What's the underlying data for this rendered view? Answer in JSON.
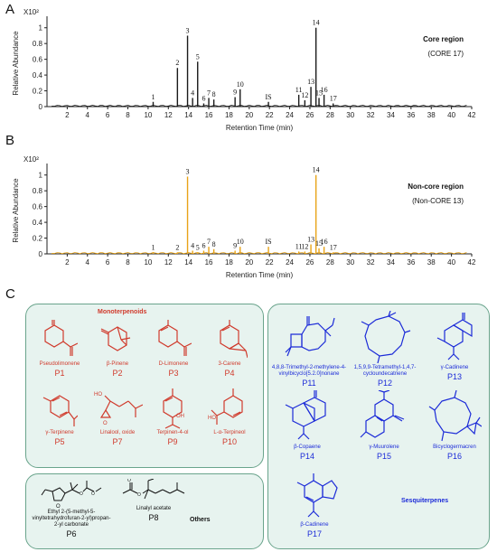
{
  "panels": {
    "a": "A",
    "b": "B",
    "c": "C"
  },
  "chart_data": [
    {
      "type": "line",
      "title": "Core region",
      "subtitle": "(CORE 17)",
      "xlabel": "Retention Time (min)",
      "ylabel": "Relative Abundance",
      "y_multiplier": "X10²",
      "xlim": [
        0,
        42
      ],
      "xticks": [
        2,
        4,
        6,
        8,
        10,
        12,
        14,
        16,
        18,
        20,
        22,
        24,
        26,
        28,
        30,
        32,
        34,
        36,
        38,
        40,
        42
      ],
      "ylim": [
        0,
        1.1
      ],
      "yticks": [
        0,
        0.2,
        0.4,
        0.6,
        0.8,
        1
      ],
      "color": "#1a1a1a",
      "peaks": [
        {
          "label": "1",
          "x": 10.5,
          "y": 0.06
        },
        {
          "label": "2",
          "x": 12.9,
          "y": 0.49
        },
        {
          "label": "3",
          "x": 13.9,
          "y": 0.9
        },
        {
          "label": "4",
          "x": 14.4,
          "y": 0.11
        },
        {
          "label": "5",
          "x": 14.9,
          "y": 0.57
        },
        {
          "label": "6",
          "x": 15.5,
          "y": 0.04
        },
        {
          "label": "7",
          "x": 16.0,
          "y": 0.11
        },
        {
          "label": "8",
          "x": 16.5,
          "y": 0.09
        },
        {
          "label": "9",
          "x": 18.6,
          "y": 0.12
        },
        {
          "label": "10",
          "x": 19.1,
          "y": 0.22
        },
        {
          "label": "IS",
          "x": 21.9,
          "y": 0.06
        },
        {
          "label": "11",
          "x": 24.9,
          "y": 0.15
        },
        {
          "label": "12",
          "x": 25.5,
          "y": 0.08
        },
        {
          "label": "13",
          "x": 26.1,
          "y": 0.25
        },
        {
          "label": "14",
          "x": 26.6,
          "y": 1.0
        },
        {
          "label": "15",
          "x": 26.9,
          "y": 0.11
        },
        {
          "label": "16",
          "x": 27.4,
          "y": 0.15
        },
        {
          "label": "17",
          "x": 28.3,
          "y": 0.04
        }
      ]
    },
    {
      "type": "line",
      "title": "Non-core region",
      "subtitle": "(Non-CORE 13)",
      "xlabel": "Retention Time (min)",
      "ylabel": "Relative Abundance",
      "y_multiplier": "X10²",
      "xlim": [
        0,
        42
      ],
      "xticks": [
        2,
        4,
        6,
        8,
        10,
        12,
        14,
        16,
        18,
        20,
        22,
        24,
        26,
        28,
        30,
        32,
        34,
        36,
        38,
        40,
        42
      ],
      "ylim": [
        0,
        1.1
      ],
      "yticks": [
        0,
        0.2,
        0.4,
        0.6,
        0.8,
        1
      ],
      "color": "#e8a317",
      "peaks": [
        {
          "label": "1",
          "x": 10.5,
          "y": 0.02
        },
        {
          "label": "2",
          "x": 12.9,
          "y": 0.02
        },
        {
          "label": "3",
          "x": 13.9,
          "y": 0.98
        },
        {
          "label": "4",
          "x": 14.4,
          "y": 0.04
        },
        {
          "label": "5",
          "x": 14.9,
          "y": 0.02
        },
        {
          "label": "6",
          "x": 15.5,
          "y": 0.04
        },
        {
          "label": "7",
          "x": 16.0,
          "y": 0.09
        },
        {
          "label": "8",
          "x": 16.5,
          "y": 0.06
        },
        {
          "label": "9",
          "x": 18.6,
          "y": 0.04
        },
        {
          "label": "10",
          "x": 19.1,
          "y": 0.09
        },
        {
          "label": "IS",
          "x": 21.9,
          "y": 0.09
        },
        {
          "label": "11",
          "x": 24.9,
          "y": 0.03
        },
        {
          "label": "12",
          "x": 25.5,
          "y": 0.03
        },
        {
          "label": "13",
          "x": 26.1,
          "y": 0.12
        },
        {
          "label": "14",
          "x": 26.6,
          "y": 1.0
        },
        {
          "label": "15",
          "x": 26.9,
          "y": 0.07
        },
        {
          "label": "16",
          "x": 27.4,
          "y": 0.09
        },
        {
          "label": "17",
          "x": 28.3,
          "y": 0.02
        }
      ]
    }
  ],
  "structures": {
    "monoterpenoids_title": "Monoterpenoids",
    "sesquiterpenes_title": "Sesquiterpenes",
    "others_title": "Others",
    "p1": {
      "name": "Pseudolimonene",
      "code": "P1"
    },
    "p2": {
      "name": "β-Pinene",
      "code": "P2"
    },
    "p3": {
      "name": "D-Limonene",
      "code": "P3"
    },
    "p4": {
      "name": "3-Carene",
      "code": "P4"
    },
    "p5": {
      "name": "γ-Terpinene",
      "code": "P5"
    },
    "p7": {
      "name": "Linalool, oxide",
      "code": "P7"
    },
    "p9": {
      "name": "Terpinen-4-ol",
      "code": "P9"
    },
    "p10": {
      "name": "L-α-Terpineol",
      "code": "P10"
    },
    "p6": {
      "name": "Ethyl 2-(5-methyl-5-vinyltetrahydrofuran-2-yl)propan-2-yl carbonate",
      "code": "P6"
    },
    "p8": {
      "name": "Linalyl acetate",
      "code": "P8"
    },
    "p11": {
      "name": "4,8,8-Trimethyl-2-methylene-4-vinylbicyclo[5.2.0]nonane",
      "code": "P11"
    },
    "p12": {
      "name": "1,5,9,9-Tetramethyl-1,4,7-cycloundecatriene",
      "code": "P12"
    },
    "p13": {
      "name": "γ-Cadinene",
      "code": "P13"
    },
    "p14": {
      "name": "β-Copaene",
      "code": "P14"
    },
    "p15": {
      "name": "γ-Muurolene",
      "code": "P15"
    },
    "p16": {
      "name": "Bicyclogermacren",
      "code": "P16"
    },
    "p17": {
      "name": "β-Cadinene",
      "code": "P17"
    }
  }
}
